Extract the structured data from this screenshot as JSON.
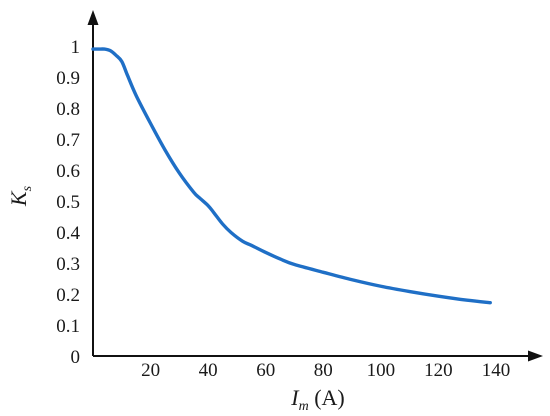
{
  "chart_data": {
    "type": "line",
    "title": "",
    "xlabel": {
      "symbol": "I",
      "subscript": "m",
      "unit": " (A)"
    },
    "ylabel": {
      "symbol": "K",
      "subscript": "s"
    },
    "xlim": [
      0,
      140
    ],
    "ylim": [
      0,
      1
    ],
    "xticks": [
      20,
      40,
      60,
      80,
      100,
      120,
      140
    ],
    "xtick_labels": [
      "20",
      "40",
      "60",
      "80",
      "100",
      "120",
      "140"
    ],
    "yticks": [
      0,
      0.1,
      0.2,
      0.3,
      0.4,
      0.5,
      0.6,
      0.7,
      0.8,
      0.9,
      1
    ],
    "ytick_labels": [
      "0",
      "0.1",
      "0.2",
      "0.3",
      "0.4",
      "0.5",
      "0.6",
      "0.7",
      "0.8",
      "0.9",
      "1"
    ],
    "grid": false,
    "series": [
      {
        "color": "#1f6fc6",
        "x": [
          0,
          2,
          4,
          6,
          8,
          10,
          12,
          15,
          20,
          25,
          30,
          35,
          37,
          40,
          42,
          45,
          48,
          52,
          55,
          60,
          65,
          70,
          80,
          90,
          100,
          110,
          120,
          130,
          138
        ],
        "y": [
          0.99,
          0.99,
          0.99,
          0.985,
          0.97,
          0.95,
          0.905,
          0.84,
          0.75,
          0.665,
          0.59,
          0.528,
          0.51,
          0.485,
          0.462,
          0.426,
          0.398,
          0.37,
          0.357,
          0.334,
          0.313,
          0.295,
          0.27,
          0.246,
          0.225,
          0.208,
          0.193,
          0.18,
          0.172
        ]
      }
    ]
  }
}
